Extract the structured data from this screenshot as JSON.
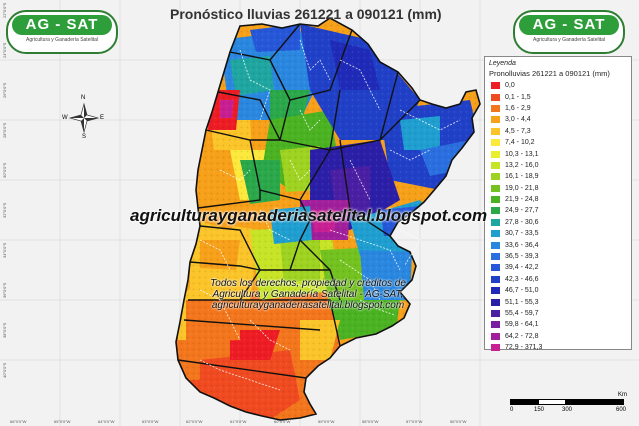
{
  "title": "Pronóstico lluvias 261221 a 090121 (mm)",
  "logo_left": {
    "main": "AG - SAT",
    "sub": "Agricultura y Ganadería Satelital"
  },
  "logo_right": {
    "main": "AG - SAT",
    "sub": "Agricultura y Ganadería Satelital"
  },
  "legend": {
    "header": "Leyenda",
    "subtitle": "Pronolluvias 261221 a 090121 (mm)",
    "items": [
      {
        "label": "0,0",
        "color": "#ee1c24"
      },
      {
        "label": "0,1 - 1,5",
        "color": "#f04a20"
      },
      {
        "label": "1,6 - 2,9",
        "color": "#f3761c"
      },
      {
        "label": "3,0 - 4,4",
        "color": "#f7a019"
      },
      {
        "label": "4,5 - 7,3",
        "color": "#fbc52a"
      },
      {
        "label": "7,4 - 10,2",
        "color": "#fde93c"
      },
      {
        "label": "10,3 - 13,1",
        "color": "#e8f02e"
      },
      {
        "label": "13,2 - 16,0",
        "color": "#c7e426"
      },
      {
        "label": "16,1 - 18,9",
        "color": "#9fd321"
      },
      {
        "label": "19,0 - 21,8",
        "color": "#73c21f"
      },
      {
        "label": "21,9 - 24,8",
        "color": "#4bb322"
      },
      {
        "label": "24,9 - 27,7",
        "color": "#2aa84a"
      },
      {
        "label": "27,8 - 30,6",
        "color": "#1fa6a0"
      },
      {
        "label": "30,7 - 33,5",
        "color": "#1f9ed0"
      },
      {
        "label": "33,6 - 36,4",
        "color": "#2a87e0"
      },
      {
        "label": "36,5 - 39,3",
        "color": "#2a6fe0"
      },
      {
        "label": "39,4 - 42,2",
        "color": "#2557d8"
      },
      {
        "label": "42,3 - 46,6",
        "color": "#2040c8"
      },
      {
        "label": "46,7 - 51,0",
        "color": "#1f2bb8"
      },
      {
        "label": "51,1 - 55,3",
        "color": "#2b1fa8"
      },
      {
        "label": "55,4 - 59,7",
        "color": "#4a1fa3"
      },
      {
        "label": "59,8 - 64,1",
        "color": "#7a1f9f"
      },
      {
        "label": "64,2 - 72,8",
        "color": "#a11f9a"
      },
      {
        "label": "72,9 - 371,3",
        "color": "#c81f92"
      }
    ]
  },
  "watermark": "agriculturayganaderiasatelital.blogspot.com",
  "rights": "Todos los derechos, propiedad y créditos de Agricultura y Ganadería Satelital - AG-SAT, agriculturayganaderiasatelital.blogspot.com",
  "scale": {
    "ticks": [
      "0",
      "150",
      "300",
      "600"
    ],
    "unit": "Km"
  },
  "compass": {
    "n": "N",
    "s": "S",
    "e": "E",
    "w": "W"
  },
  "coords": {
    "bottom": [
      "66°0'0\"W",
      "65°0'0\"W",
      "64°0'0\"W",
      "63°0'0\"W",
      "62°0'0\"W",
      "61°0'0\"W",
      "60°0'0\"W",
      "59°0'0\"W",
      "58°0'0\"W",
      "57°0'0\"W",
      "56°0'0\"W"
    ],
    "left": [
      "22°0'0\"S",
      "24°0'0\"S",
      "26°0'0\"S",
      "28°0'0\"S",
      "30°0'0\"S",
      "32°0'0\"S",
      "34°0'0\"S",
      "36°0'0\"S",
      "38°0'0\"S",
      "40°0'0\"S"
    ]
  }
}
